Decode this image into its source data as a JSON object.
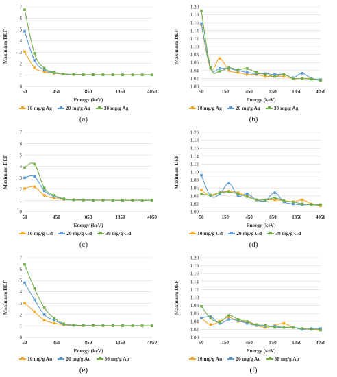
{
  "colors": {
    "s10": "#f5a623",
    "s20": "#5b9bd5",
    "s30": "#70ad47",
    "grid": "#d9d9d9",
    "axis": "#bfbfbf",
    "text": "#333333"
  },
  "chart_data": [
    {
      "panel_label": "(a)",
      "type": "line",
      "xlabel": "Energy (keV)",
      "ylabel": "Maximum DEF",
      "x": [
        50,
        100,
        150,
        200,
        300,
        450,
        600,
        750,
        900,
        1050,
        1350,
        1600,
        2000,
        4050
      ],
      "x_ticks": [
        "50",
        "450",
        "850",
        "1350",
        "4050"
      ],
      "ylim": [
        0,
        7
      ],
      "y_ticks": [
        "0",
        "1",
        "2",
        "3",
        "4",
        "5",
        "6",
        "7"
      ],
      "series": [
        {
          "name": "10 mg/g Ag",
          "color_key": "s10",
          "values": [
            3.05,
            1.65,
            1.3,
            1.15,
            1.08,
            1.04,
            1.02,
            1.02,
            1.02,
            1.01,
            1.01,
            1.01,
            1.01,
            1.01
          ]
        },
        {
          "name": "20 mg/g Ag",
          "color_key": "s20",
          "values": [
            4.85,
            2.3,
            1.45,
            1.2,
            1.09,
            1.05,
            1.03,
            1.03,
            1.02,
            1.02,
            1.02,
            1.02,
            1.02,
            1.01
          ]
        },
        {
          "name": "30 mg/g Ag",
          "color_key": "s30",
          "values": [
            6.75,
            2.9,
            1.6,
            1.25,
            1.1,
            1.05,
            1.03,
            1.03,
            1.03,
            1.02,
            1.02,
            1.02,
            1.02,
            1.01
          ]
        }
      ]
    },
    {
      "panel_label": "(b)",
      "type": "line",
      "xlabel": "Energy (keV)",
      "ylabel": "Maximum DEF",
      "x": [
        50,
        100,
        150,
        200,
        300,
        450,
        600,
        750,
        900,
        1050,
        1350,
        1600,
        2000,
        4050
      ],
      "x_ticks": [
        "50",
        "150",
        "450",
        "850",
        "1350",
        "4050"
      ],
      "ylim": [
        1.0,
        1.2
      ],
      "y_ticks": [
        "1.00",
        "1.02",
        "1.04",
        "1.06",
        "1.08",
        "1.10",
        "1.12",
        "1.14",
        "1.16",
        "1.18",
        "1.20"
      ],
      "series": [
        {
          "name": "10 mg/g Ag",
          "color_key": "s10",
          "values": [
            1.155,
            1.045,
            1.07,
            1.04,
            1.035,
            1.03,
            1.03,
            1.025,
            1.025,
            1.025,
            1.02,
            1.02,
            1.02,
            1.015
          ]
        },
        {
          "name": "20 mg/g Ag",
          "color_key": "s20",
          "values": [
            1.158,
            1.047,
            1.045,
            1.045,
            1.04,
            1.035,
            1.032,
            1.032,
            1.03,
            1.03,
            1.022,
            1.033,
            1.02,
            1.017
          ]
        },
        {
          "name": "30 mg/g Ag",
          "color_key": "s30",
          "values": [
            1.19,
            1.048,
            1.038,
            1.047,
            1.042,
            1.045,
            1.035,
            1.03,
            1.025,
            1.03,
            1.02,
            1.02,
            1.018,
            1.015
          ]
        }
      ]
    },
    {
      "panel_label": "(c)",
      "type": "line",
      "xlabel": "Energy (keV)",
      "ylabel": "Maximum DEF",
      "x": [
        50,
        100,
        150,
        200,
        300,
        450,
        600,
        750,
        900,
        1050,
        1350,
        1600,
        2000,
        4050
      ],
      "x_ticks": [
        "50",
        "450",
        "850",
        "1350",
        "4050"
      ],
      "ylim": [
        0,
        7
      ],
      "y_ticks": [
        "0",
        "1",
        "2",
        "3",
        "4",
        "5",
        "6",
        "7"
      ],
      "series": [
        {
          "name": "10 mg/g Gd",
          "color_key": "s10",
          "values": [
            2.05,
            2.2,
            1.45,
            1.2,
            1.08,
            1.04,
            1.03,
            1.02,
            1.02,
            1.02,
            1.01,
            1.01,
            1.01,
            1.01
          ]
        },
        {
          "name": "20 mg/g Gd",
          "color_key": "s20",
          "values": [
            3.0,
            3.1,
            1.85,
            1.35,
            1.12,
            1.05,
            1.04,
            1.03,
            1.03,
            1.02,
            1.02,
            1.02,
            1.02,
            1.02
          ]
        },
        {
          "name": "30 mg/g Gd",
          "color_key": "s30",
          "values": [
            3.9,
            4.2,
            2.1,
            1.45,
            1.15,
            1.06,
            1.05,
            1.03,
            1.03,
            1.03,
            1.02,
            1.02,
            1.02,
            1.02
          ]
        }
      ]
    },
    {
      "panel_label": "(d)",
      "type": "line",
      "xlabel": "Energy (keV)",
      "ylabel": "Maximum DEF",
      "x": [
        50,
        100,
        150,
        200,
        300,
        450,
        600,
        750,
        900,
        1050,
        1350,
        1600,
        2000,
        4050
      ],
      "x_ticks": [
        "50",
        "150",
        "450",
        "850",
        "1350",
        "4050"
      ],
      "ylim": [
        1.0,
        1.2
      ],
      "y_ticks": [
        "1.00",
        "1.02",
        "1.04",
        "1.06",
        "1.08",
        "1.10",
        "1.12",
        "1.14",
        "1.16",
        "1.18",
        "1.20"
      ],
      "series": [
        {
          "name": "10 mg/g Gd",
          "color_key": "s10",
          "values": [
            1.055,
            1.04,
            1.048,
            1.052,
            1.048,
            1.04,
            1.03,
            1.03,
            1.03,
            1.028,
            1.025,
            1.03,
            1.02,
            1.015
          ]
        },
        {
          "name": "20 mg/g Gd",
          "color_key": "s20",
          "values": [
            1.092,
            1.04,
            1.045,
            1.072,
            1.04,
            1.045,
            1.03,
            1.028,
            1.048,
            1.025,
            1.02,
            1.018,
            1.018,
            1.018
          ]
        },
        {
          "name": "30 mg/g Gd",
          "color_key": "s30",
          "values": [
            1.045,
            1.042,
            1.048,
            1.05,
            1.045,
            1.038,
            1.03,
            1.03,
            1.035,
            1.028,
            1.025,
            1.02,
            1.018,
            1.018
          ]
        }
      ]
    },
    {
      "panel_label": "(e)",
      "type": "line",
      "xlabel": "Energy (keV)",
      "ylabel": "Maximum DEF",
      "x": [
        50,
        100,
        150,
        200,
        300,
        450,
        600,
        750,
        900,
        1050,
        1350,
        1600,
        2000,
        4050
      ],
      "x_ticks": [
        "50",
        "450",
        "850",
        "1350",
        "4050"
      ],
      "ylim": [
        0,
        7
      ],
      "y_ticks": [
        "0",
        "1",
        "2",
        "3",
        "4",
        "5",
        "6",
        "7"
      ],
      "series": [
        {
          "name": "10 mg/g Au",
          "color_key": "s10",
          "values": [
            3.0,
            2.25,
            1.5,
            1.25,
            1.1,
            1.05,
            1.03,
            1.03,
            1.02,
            1.02,
            1.02,
            1.02,
            1.02,
            1.01
          ]
        },
        {
          "name": "20 mg/g Au",
          "color_key": "s20",
          "values": [
            4.8,
            3.3,
            2.0,
            1.5,
            1.15,
            1.06,
            1.04,
            1.04,
            1.03,
            1.03,
            1.02,
            1.02,
            1.02,
            1.02
          ]
        },
        {
          "name": "30 mg/g Au",
          "color_key": "s30",
          "values": [
            6.4,
            4.3,
            2.6,
            1.7,
            1.2,
            1.08,
            1.05,
            1.05,
            1.04,
            1.03,
            1.03,
            1.03,
            1.02,
            1.02
          ]
        }
      ]
    },
    {
      "panel_label": "(f)",
      "type": "line",
      "xlabel": "Energy (keV)",
      "ylabel": "Maximum DEF",
      "x": [
        50,
        100,
        150,
        200,
        300,
        450,
        600,
        750,
        900,
        1050,
        1350,
        1600,
        2000,
        4050
      ],
      "x_ticks": [
        "50",
        "150",
        "450",
        "850",
        "1350",
        "4050"
      ],
      "ylim": [
        1.0,
        1.2
      ],
      "y_ticks": [
        "1.00",
        "1.02",
        "1.04",
        "1.06",
        "1.08",
        "1.10",
        "1.12",
        "1.14",
        "1.16",
        "1.18",
        "1.20"
      ],
      "series": [
        {
          "name": "10 mg/g Au",
          "color_key": "s10",
          "values": [
            1.048,
            1.032,
            1.04,
            1.05,
            1.04,
            1.038,
            1.03,
            1.025,
            1.03,
            1.035,
            1.025,
            1.022,
            1.02,
            1.02
          ]
        },
        {
          "name": "20 mg/g Au",
          "color_key": "s20",
          "values": [
            1.048,
            1.052,
            1.035,
            1.045,
            1.042,
            1.035,
            1.03,
            1.028,
            1.028,
            1.025,
            1.025,
            1.02,
            1.022,
            1.022
          ]
        },
        {
          "name": "30 mg/g Au",
          "color_key": "s30",
          "values": [
            1.078,
            1.048,
            1.038,
            1.055,
            1.045,
            1.04,
            1.032,
            1.03,
            1.025,
            1.025,
            1.025,
            1.022,
            1.02,
            1.018
          ]
        }
      ]
    }
  ]
}
